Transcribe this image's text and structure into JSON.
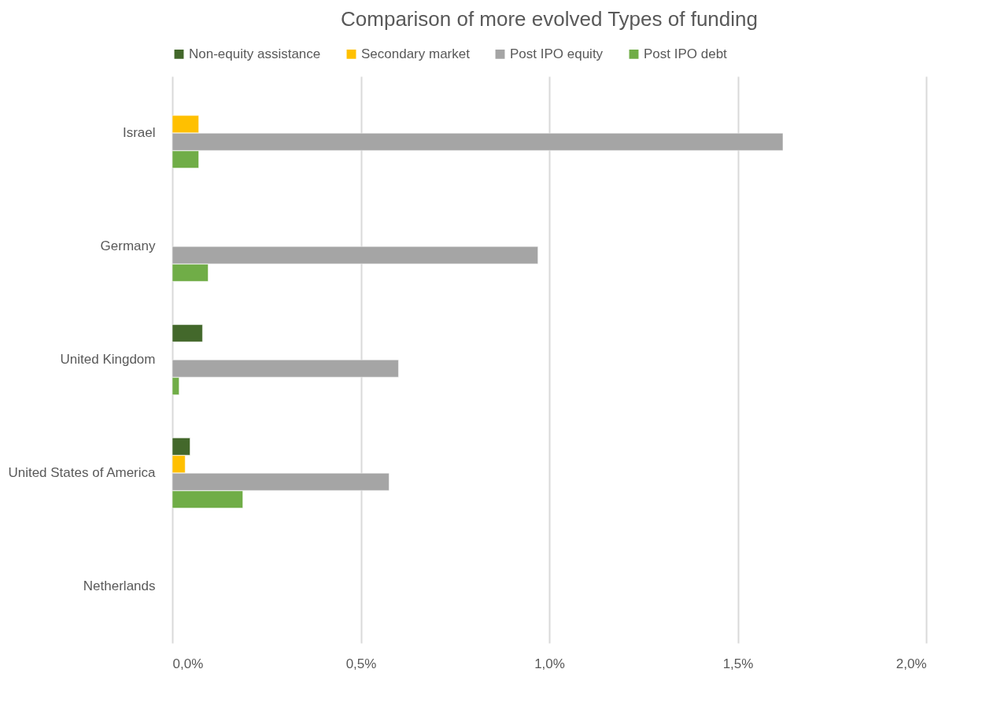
{
  "chart_data": {
    "type": "bar",
    "orientation": "horizontal",
    "title": "Comparison of more evolved Types of funding",
    "categories": [
      "Israel",
      "Germany",
      "United Kingdom",
      "United States of America",
      "Netherlands"
    ],
    "series": [
      {
        "name": "Non-equity assistance",
        "color": "#43682b",
        "values": [
          null,
          null,
          0.08,
          0.047,
          null
        ]
      },
      {
        "name": "Secondary market",
        "color": "#ffc000",
        "values": [
          0.07,
          null,
          null,
          0.034,
          null
        ]
      },
      {
        "name": "Post IPO equity",
        "color": "#a5a5a5",
        "values": [
          1.62,
          0.97,
          0.6,
          0.575,
          null
        ]
      },
      {
        "name": "Post IPO debt",
        "color": "#70ad47",
        "values": [
          0.07,
          0.095,
          0.018,
          0.187,
          null
        ]
      }
    ],
    "xlim": [
      0,
      2
    ],
    "xticks": [
      {
        "value": 0,
        "label": "0,0%"
      },
      {
        "value": 0.5,
        "label": "0,5%"
      },
      {
        "value": 1,
        "label": "1,0%"
      },
      {
        "value": 1.5,
        "label": "1,5%"
      },
      {
        "value": 2,
        "label": "2,0%"
      }
    ],
    "grid": "x",
    "legend": "top"
  }
}
